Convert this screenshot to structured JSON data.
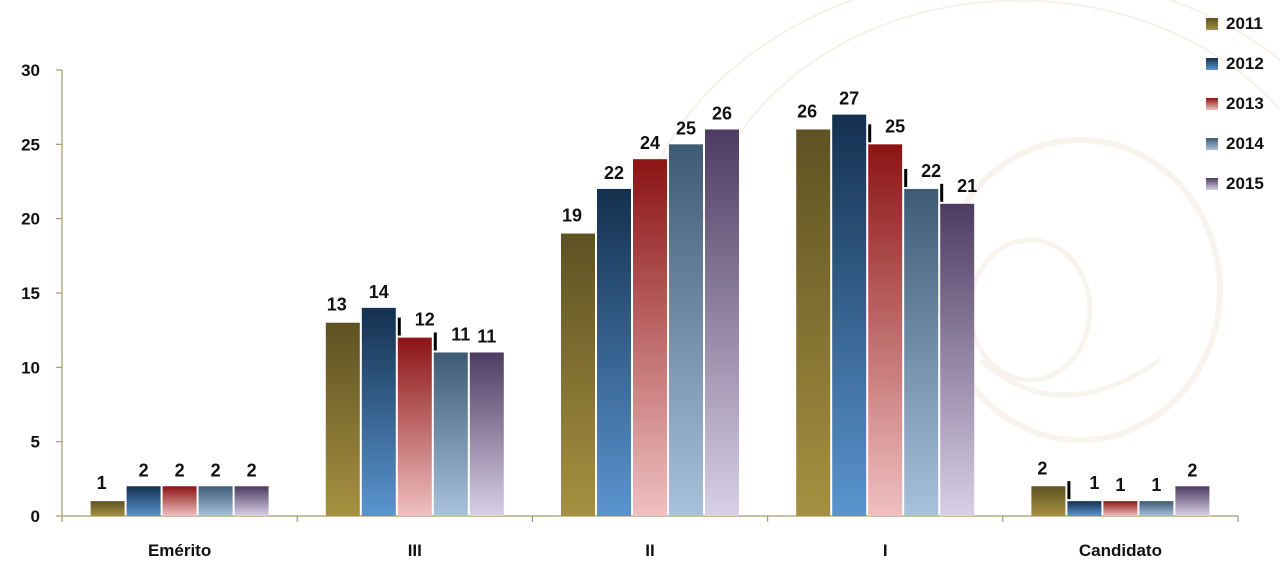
{
  "chart_data": {
    "type": "bar",
    "categories": [
      "Emérito",
      "III",
      "II",
      "I",
      "Candidato"
    ],
    "series": [
      {
        "name": "2011",
        "values": [
          1,
          13,
          19,
          26,
          2
        ]
      },
      {
        "name": "2012",
        "values": [
          2,
          14,
          22,
          27,
          1
        ]
      },
      {
        "name": "2013",
        "values": [
          2,
          12,
          24,
          25,
          1
        ]
      },
      {
        "name": "2014",
        "values": [
          2,
          11,
          25,
          22,
          1
        ]
      },
      {
        "name": "2015",
        "values": [
          2,
          11,
          26,
          21,
          2
        ]
      }
    ],
    "yticks": [
      "0",
      "5",
      "10",
      "15",
      "20",
      "25",
      "30"
    ],
    "ylim": [
      0,
      30
    ],
    "title": "",
    "xlabel": "",
    "ylabel": "",
    "legend_position": "top-right",
    "grid": false,
    "colors": [
      {
        "top": "#5e5223",
        "bottom": "#a69040"
      },
      {
        "top": "#14304f",
        "bottom": "#5a95cf"
      },
      {
        "top": "#8b1414",
        "bottom": "#f0c0c0"
      },
      {
        "top": "#3e5a75",
        "bottom": "#a8c2dc"
      },
      {
        "top": "#4e3b62",
        "bottom": "#d8d0e6"
      }
    ]
  }
}
